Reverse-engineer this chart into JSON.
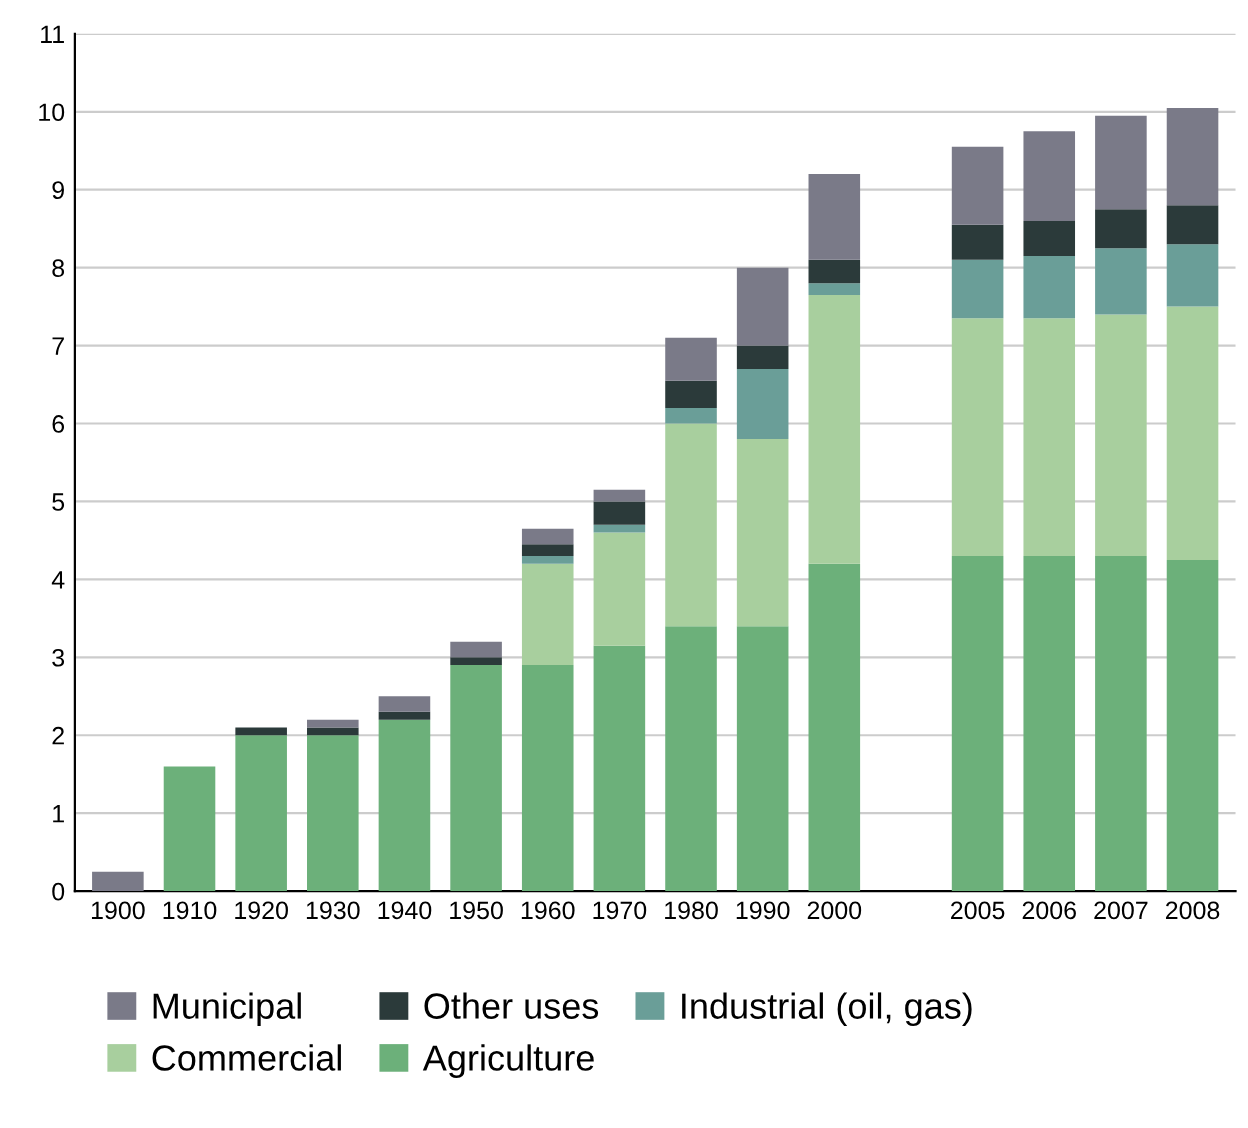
{
  "chart_data": {
    "type": "bar",
    "stacked": true,
    "categories": [
      "1900",
      "1910",
      "1920",
      "1930",
      "1940",
      "1950",
      "1960",
      "1970",
      "1980",
      "1990",
      "2000",
      null,
      "2005",
      "2006",
      "2007",
      "2008"
    ],
    "series": [
      {
        "name": "Agriculture",
        "color": "#6cb07a",
        "values": [
          0,
          1.6,
          2.0,
          2.0,
          2.2,
          2.9,
          2.9,
          3.15,
          3.4,
          3.4,
          4.2,
          null,
          4.3,
          4.3,
          4.3,
          4.25
        ]
      },
      {
        "name": "Commercial",
        "color": "#a8cf9e",
        "values": [
          0,
          0,
          0,
          0,
          0,
          0,
          1.3,
          1.45,
          2.6,
          2.4,
          3.45,
          null,
          3.05,
          3.05,
          3.1,
          3.25
        ]
      },
      {
        "name": "Industrial (oil, gas)",
        "color": "#6a9e98",
        "values": [
          0,
          0,
          0,
          0,
          0,
          0,
          0.1,
          0.1,
          0.2,
          0.9,
          0.15,
          null,
          0.75,
          0.8,
          0.85,
          0.8
        ]
      },
      {
        "name": "Other uses",
        "color": "#2b3a3a",
        "values": [
          0,
          0,
          0.1,
          0.1,
          0.1,
          0.1,
          0.15,
          0.3,
          0.35,
          0.3,
          0.3,
          null,
          0.45,
          0.45,
          0.5,
          0.5
        ]
      },
      {
        "name": "Municipal",
        "color": "#7a7a88",
        "values": [
          0.25,
          0,
          0,
          0.1,
          0.2,
          0.2,
          0.2,
          0.15,
          0.55,
          1.0,
          1.1,
          null,
          1.0,
          1.15,
          1.2,
          1.25
        ]
      }
    ],
    "ylim": [
      0,
      11
    ],
    "yticks": [
      0,
      1,
      2,
      3,
      4,
      5,
      6,
      7,
      8,
      9,
      10,
      11
    ],
    "grid": "y",
    "legend": "bottom"
  }
}
